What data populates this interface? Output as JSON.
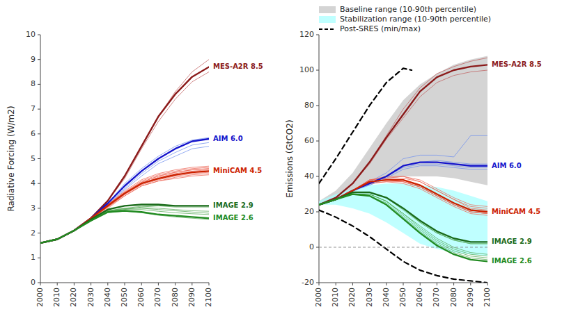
{
  "chart_data": [
    {
      "type": "line",
      "y_label": "Radiative Forcing (W/m2)",
      "x": [
        2000,
        2010,
        2020,
        2030,
        2040,
        2050,
        2060,
        2070,
        2080,
        2090,
        2100
      ],
      "xlim": [
        2000,
        2100
      ],
      "xticks": [
        2000,
        2010,
        2020,
        2030,
        2040,
        2050,
        2060,
        2070,
        2080,
        2090,
        2100
      ],
      "ylim": [
        0,
        10
      ],
      "yticks": [
        0,
        1,
        2,
        3,
        4,
        5,
        6,
        7,
        8,
        9,
        10
      ],
      "grid": false,
      "series": [
        {
          "color": "#C06060",
          "values": [
            1.6,
            1.75,
            2.1,
            2.6,
            3.3,
            4.3,
            5.5,
            6.7,
            7.7,
            8.5,
            9.0
          ]
        },
        {
          "color": "#C06060",
          "values": [
            1.6,
            1.75,
            2.1,
            2.6,
            3.3,
            4.2,
            5.4,
            6.5,
            7.4,
            8.1,
            8.5
          ]
        },
        {
          "color": "#7090EE",
          "values": [
            1.6,
            1.75,
            2.1,
            2.6,
            3.2,
            4.0,
            4.6,
            5.1,
            5.5,
            5.75,
            5.85
          ]
        },
        {
          "color": "#7090EE",
          "values": [
            1.6,
            1.75,
            2.1,
            2.6,
            3.15,
            3.8,
            4.4,
            4.9,
            5.25,
            5.55,
            5.65
          ]
        },
        {
          "color": "#7090EE",
          "values": [
            1.6,
            1.75,
            2.1,
            2.55,
            3.1,
            3.75,
            4.3,
            4.8,
            5.1,
            5.4,
            5.5
          ]
        },
        {
          "color": "#EE6655",
          "values": [
            1.6,
            1.75,
            2.1,
            2.6,
            3.15,
            3.65,
            4.05,
            4.3,
            4.45,
            4.55,
            4.6
          ]
        },
        {
          "color": "#EE6655",
          "values": [
            1.6,
            1.75,
            2.1,
            2.55,
            3.05,
            3.5,
            3.9,
            4.1,
            4.25,
            4.35,
            4.4
          ]
        },
        {
          "color": "#EE6655",
          "values": [
            1.6,
            1.75,
            2.1,
            2.6,
            3.15,
            3.7,
            4.15,
            4.4,
            4.55,
            4.65,
            4.7
          ]
        },
        {
          "color": "#EE6655",
          "values": [
            1.6,
            1.75,
            2.1,
            2.55,
            3.05,
            3.55,
            3.95,
            4.15,
            4.3,
            4.4,
            4.45
          ]
        },
        {
          "color": "#EE6655",
          "values": [
            1.6,
            1.75,
            2.1,
            2.6,
            3.1,
            3.6,
            4.05,
            4.3,
            4.45,
            4.55,
            4.6
          ]
        },
        {
          "color": "#EE6655",
          "values": [
            1.6,
            1.75,
            2.1,
            2.55,
            3.0,
            3.5,
            3.9,
            4.1,
            4.2,
            4.3,
            4.35
          ]
        },
        {
          "color": "#EE6655",
          "values": [
            1.6,
            1.75,
            2.1,
            2.6,
            3.15,
            3.65,
            4.1,
            4.35,
            4.5,
            4.6,
            4.65
          ]
        },
        {
          "color": "#EE6655",
          "values": [
            1.6,
            1.75,
            2.1,
            2.58,
            3.08,
            3.6,
            4.0,
            4.25,
            4.4,
            4.5,
            4.55
          ]
        },
        {
          "color": "#55AA55",
          "values": [
            1.6,
            1.75,
            2.1,
            2.5,
            2.85,
            2.95,
            3.05,
            3.1,
            3.1,
            3.1,
            3.1
          ]
        },
        {
          "color": "#55AA55",
          "values": [
            1.6,
            1.75,
            2.1,
            2.55,
            2.9,
            3.0,
            3.0,
            2.95,
            2.9,
            2.85,
            2.8
          ]
        },
        {
          "color": "#55AA55",
          "values": [
            1.6,
            1.75,
            2.1,
            2.52,
            2.88,
            2.98,
            3.02,
            3.0,
            2.95,
            2.9,
            2.88
          ]
        },
        {
          "color": "#55AA55",
          "values": [
            1.6,
            1.75,
            2.1,
            2.53,
            2.9,
            3.0,
            3.08,
            3.1,
            3.05,
            3.05,
            3.05
          ]
        },
        {
          "color": "#55AA55",
          "values": [
            1.6,
            1.75,
            2.1,
            2.48,
            2.82,
            2.88,
            2.82,
            2.72,
            2.65,
            2.6,
            2.55
          ]
        },
        {
          "color": "#55AA55",
          "values": [
            1.6,
            1.75,
            2.1,
            2.52,
            2.88,
            2.95,
            2.95,
            2.88,
            2.82,
            2.78,
            2.75
          ]
        },
        {
          "name": "MES-A2R 8.5",
          "color": "#8B1A1A",
          "values": [
            1.6,
            1.75,
            2.1,
            2.6,
            3.3,
            4.3,
            5.5,
            6.7,
            7.6,
            8.3,
            8.7
          ]
        },
        {
          "name": "AIM 6.0",
          "color": "#1515CC",
          "values": [
            1.6,
            1.75,
            2.1,
            2.6,
            3.2,
            3.9,
            4.5,
            5.0,
            5.4,
            5.7,
            5.8
          ]
        },
        {
          "name": "MiniCAM 4.5",
          "color": "#CC2200",
          "values": [
            1.6,
            1.75,
            2.1,
            2.6,
            3.1,
            3.6,
            4.0,
            4.2,
            4.35,
            4.45,
            4.5
          ]
        },
        {
          "name": "IMAGE 2.9",
          "color": "#1A6B1A",
          "values": [
            1.6,
            1.75,
            2.1,
            2.55,
            2.95,
            3.1,
            3.15,
            3.15,
            3.1,
            3.1,
            3.1
          ]
        },
        {
          "name": "IMAGE 2.6",
          "color": "#228B22",
          "values": [
            1.6,
            1.75,
            2.1,
            2.5,
            2.85,
            2.9,
            2.85,
            2.75,
            2.7,
            2.65,
            2.6
          ]
        }
      ]
    },
    {
      "type": "line",
      "y_label": "Emissions (GtCO2)",
      "x": [
        2000,
        2010,
        2020,
        2030,
        2040,
        2050,
        2060,
        2070,
        2080,
        2090,
        2100
      ],
      "xlim": [
        2000,
        2100
      ],
      "xticks": [
        2000,
        2010,
        2020,
        2030,
        2040,
        2050,
        2060,
        2070,
        2080,
        2090,
        2100
      ],
      "ylim": [
        -20,
        120
      ],
      "yticks": [
        -20,
        0,
        20,
        40,
        60,
        80,
        100,
        120
      ],
      "grid": false,
      "legend": "upper left",
      "hlines": [
        0
      ],
      "series": [
        {
          "type": "area",
          "name": "Baseline range (10-90th percentile)",
          "color": "#AAAAAA",
          "lower": [
            24,
            27,
            31,
            35,
            38,
            40,
            40,
            40,
            39,
            37,
            35
          ],
          "upper": [
            26,
            32,
            42,
            56,
            70,
            83,
            92,
            98,
            103,
            106,
            108
          ]
        },
        {
          "type": "area",
          "name": "Stabilization range (10-90th percentile)",
          "color": "#AAFFFF",
          "lower": [
            24,
            24,
            22,
            19,
            14,
            8,
            2,
            -1,
            -3,
            -4,
            -5
          ],
          "upper": [
            26,
            30,
            33,
            35,
            36,
            36,
            35,
            34,
            32,
            29,
            26
          ]
        },
        {
          "type": "line",
          "name": "Post-SRES (min/max)",
          "color": "#000000",
          "line_style": "dashed",
          "x": [
            2000,
            2010,
            2020,
            2030,
            2040,
            2050,
            2055
          ],
          "values": [
            36,
            50,
            65,
            80,
            93,
            101,
            100
          ]
        },
        {
          "type": "line",
          "color": "#000000",
          "line_style": "dashed",
          "x": [
            2000,
            2010,
            2020,
            2030,
            2040,
            2050,
            2060,
            2070,
            2080,
            2090,
            2100
          ],
          "values": [
            21,
            17,
            12,
            6,
            -1,
            -8,
            -13,
            -16,
            -18,
            -19,
            -20
          ]
        },
        {
          "color": "#C06060",
          "values": [
            24,
            28,
            36,
            48,
            63,
            78,
            90,
            98,
            102,
            105,
            107
          ]
        },
        {
          "color": "#C06060",
          "values": [
            24,
            28,
            36,
            47,
            61,
            73,
            85,
            93,
            97,
            99,
            100
          ]
        },
        {
          "color": "#7090EE",
          "values": [
            24,
            27,
            32,
            37,
            42,
            50,
            52,
            52,
            51,
            63,
            63
          ]
        },
        {
          "color": "#7090EE",
          "values": [
            24,
            27,
            32,
            36,
            40,
            45,
            47,
            47,
            46,
            45,
            45
          ]
        },
        {
          "color": "#7090EE",
          "values": [
            24,
            27,
            32,
            36,
            40,
            46,
            48,
            49,
            48,
            47,
            47
          ]
        },
        {
          "color": "#7090EE",
          "values": [
            24,
            27,
            32,
            35,
            39,
            44,
            46,
            46,
            45,
            44,
            44
          ]
        },
        {
          "color": "#EE6655",
          "values": [
            24,
            27,
            32,
            38,
            40,
            40,
            37,
            32,
            27,
            23,
            22
          ]
        },
        {
          "color": "#EE6655",
          "values": [
            24,
            27,
            32,
            37,
            38,
            37,
            34,
            29,
            24,
            20,
            19
          ]
        },
        {
          "color": "#EE6655",
          "values": [
            24,
            27,
            32,
            38,
            39,
            39,
            37,
            32,
            27,
            22,
            21
          ]
        },
        {
          "color": "#EE6655",
          "values": [
            24,
            27,
            32,
            36,
            37,
            36,
            33,
            28,
            23,
            19,
            18
          ]
        },
        {
          "color": "#EE6655",
          "values": [
            24,
            27,
            32,
            37,
            38,
            38,
            35,
            30,
            25,
            21,
            20
          ]
        },
        {
          "color": "#EE6655",
          "values": [
            24,
            27,
            32,
            36,
            37,
            37,
            34,
            29,
            24,
            20,
            19
          ]
        },
        {
          "color": "#EE6655",
          "values": [
            24,
            27,
            32,
            38,
            39,
            40,
            38,
            33,
            28,
            24,
            23
          ]
        },
        {
          "color": "#EE6655",
          "values": [
            24,
            27,
            32,
            37,
            38,
            37,
            34,
            29,
            24,
            20,
            19
          ]
        },
        {
          "color": "#55AA55",
          "values": [
            24,
            27,
            30,
            30,
            26,
            19,
            12,
            5,
            0,
            -3,
            -4
          ]
        },
        {
          "color": "#55AA55",
          "values": [
            24,
            27,
            31,
            31,
            28,
            21,
            14,
            8,
            4,
            2,
            2
          ]
        },
        {
          "color": "#55AA55",
          "values": [
            24,
            27,
            30,
            30,
            26,
            19,
            11,
            4,
            -1,
            -4,
            -5
          ]
        },
        {
          "color": "#55AA55",
          "values": [
            24,
            27,
            30,
            29,
            25,
            17,
            9,
            2,
            -3,
            -6,
            -7
          ]
        },
        {
          "color": "#55AA55",
          "values": [
            24,
            27,
            31,
            31,
            28,
            22,
            14,
            8,
            4,
            2,
            2
          ]
        },
        {
          "color": "#55AA55",
          "values": [
            24,
            27,
            30,
            30,
            26,
            18,
            10,
            3,
            -2,
            -5,
            -6
          ]
        },
        {
          "name": "MES-A2R 8.5",
          "color": "#8B1A1A",
          "values": [
            24,
            28,
            36,
            48,
            62,
            75,
            88,
            96,
            100,
            102,
            103
          ]
        },
        {
          "name": "AIM 6.0",
          "color": "#1515CC",
          "values": [
            24,
            27,
            32,
            36,
            40,
            46,
            48,
            48,
            47,
            46,
            46
          ]
        },
        {
          "name": "MiniCAM 4.5",
          "color": "#CC2200",
          "values": [
            24,
            27,
            32,
            37,
            38,
            38,
            35,
            30,
            25,
            21,
            20
          ]
        },
        {
          "name": "IMAGE 2.9",
          "color": "#1A6B1A",
          "values": [
            24,
            27,
            31,
            31,
            28,
            22,
            15,
            9,
            5,
            3,
            3
          ]
        },
        {
          "name": "IMAGE 2.6",
          "color": "#228B22",
          "values": [
            24,
            27,
            30,
            29,
            24,
            16,
            8,
            1,
            -4,
            -7,
            -8
          ]
        }
      ]
    }
  ]
}
